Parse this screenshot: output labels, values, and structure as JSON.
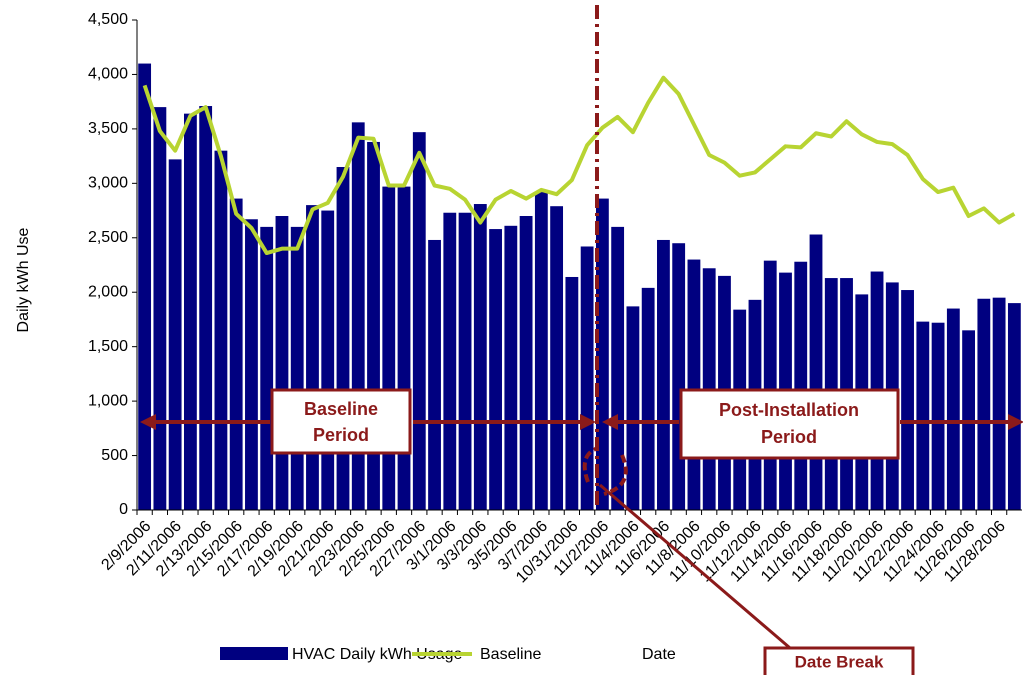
{
  "chart_data": {
    "type": "bar-line",
    "y_label": "Daily kWh Use",
    "x_label": "Date",
    "categories": [
      "2/9/2006",
      null,
      "2/11/2006",
      null,
      "2/13/2006",
      null,
      "2/15/2006",
      null,
      "2/17/2006",
      null,
      "2/19/2006",
      null,
      "2/21/2006",
      null,
      "2/23/2006",
      null,
      "2/25/2006",
      null,
      "2/27/2006",
      null,
      "3/1/2006",
      null,
      "3/3/2006",
      null,
      "3/5/2006",
      null,
      "3/7/2006",
      null,
      "10/31/2006",
      null,
      "11/2/2006",
      null,
      "11/4/2006",
      null,
      "11/6/2006",
      null,
      "11/8/2006",
      null,
      "11/10/2006",
      null,
      "11/12/2006",
      null,
      "11/14/2006",
      null,
      "11/16/2006",
      null,
      "11/18/2006",
      null,
      "11/20/2006",
      null,
      "11/22/2006",
      null,
      "11/24/2006",
      null,
      "11/26/2006",
      null,
      "11/28/2006",
      null
    ],
    "series": [
      {
        "name": "HVAC Daily kWh Usage",
        "type": "bar",
        "color": "#000080",
        "values": [
          4100,
          3700,
          3220,
          3640,
          3710,
          3300,
          2860,
          2670,
          2600,
          2700,
          2600,
          2800,
          2750,
          3150,
          3560,
          3380,
          2970,
          2970,
          3470,
          2480,
          2730,
          2730,
          2810,
          2580,
          2610,
          2700,
          2920,
          2790,
          2140,
          2420,
          2860,
          2600,
          1870,
          2040,
          2480,
          2450,
          2300,
          2220,
          2150,
          1840,
          1930,
          2290,
          2180,
          2280,
          2530,
          2130,
          2130,
          1980,
          2190,
          2090,
          2020,
          1730,
          1720,
          1850,
          1650,
          1940,
          1950,
          1900
        ]
      },
      {
        "name": "Baseline",
        "type": "line",
        "color": "#b8d432",
        "values": [
          3900,
          3480,
          3300,
          3620,
          3700,
          3250,
          2720,
          2590,
          2360,
          2400,
          2400,
          2760,
          2820,
          3060,
          3420,
          3410,
          2980,
          2980,
          3280,
          2980,
          2950,
          2850,
          2640,
          2850,
          2930,
          2860,
          2940,
          2900,
          3030,
          3350,
          3510,
          3610,
          3470,
          3740,
          3970,
          3820,
          3540,
          3260,
          3190,
          3070,
          3100,
          3220,
          3340,
          3330,
          3460,
          3430,
          3570,
          3450,
          3380,
          3360,
          3260,
          3040,
          2920,
          2960,
          2700,
          2770,
          2640,
          2720
        ]
      }
    ],
    "ylim": [
      0,
      4500
    ],
    "yticks": [
      0,
      500,
      {
        "value": 1000,
        "label": "1,000"
      },
      {
        "value": 1500,
        "label": "1,500"
      },
      {
        "value": 2000,
        "label": "2,000"
      },
      {
        "value": 2500,
        "label": "2,500"
      },
      {
        "value": 3000,
        "label": "3,000"
      },
      {
        "value": 3500,
        "label": "3,500"
      },
      {
        "value": 4000,
        "label": "4,000"
      },
      {
        "value": 4500,
        "label": "4,500"
      }
    ],
    "grid": false,
    "annotations": {
      "baseline_period": [
        "Baseline",
        "Period"
      ],
      "post_period": [
        "Post-Installation",
        "Period"
      ],
      "date_break": "Date Break"
    }
  }
}
